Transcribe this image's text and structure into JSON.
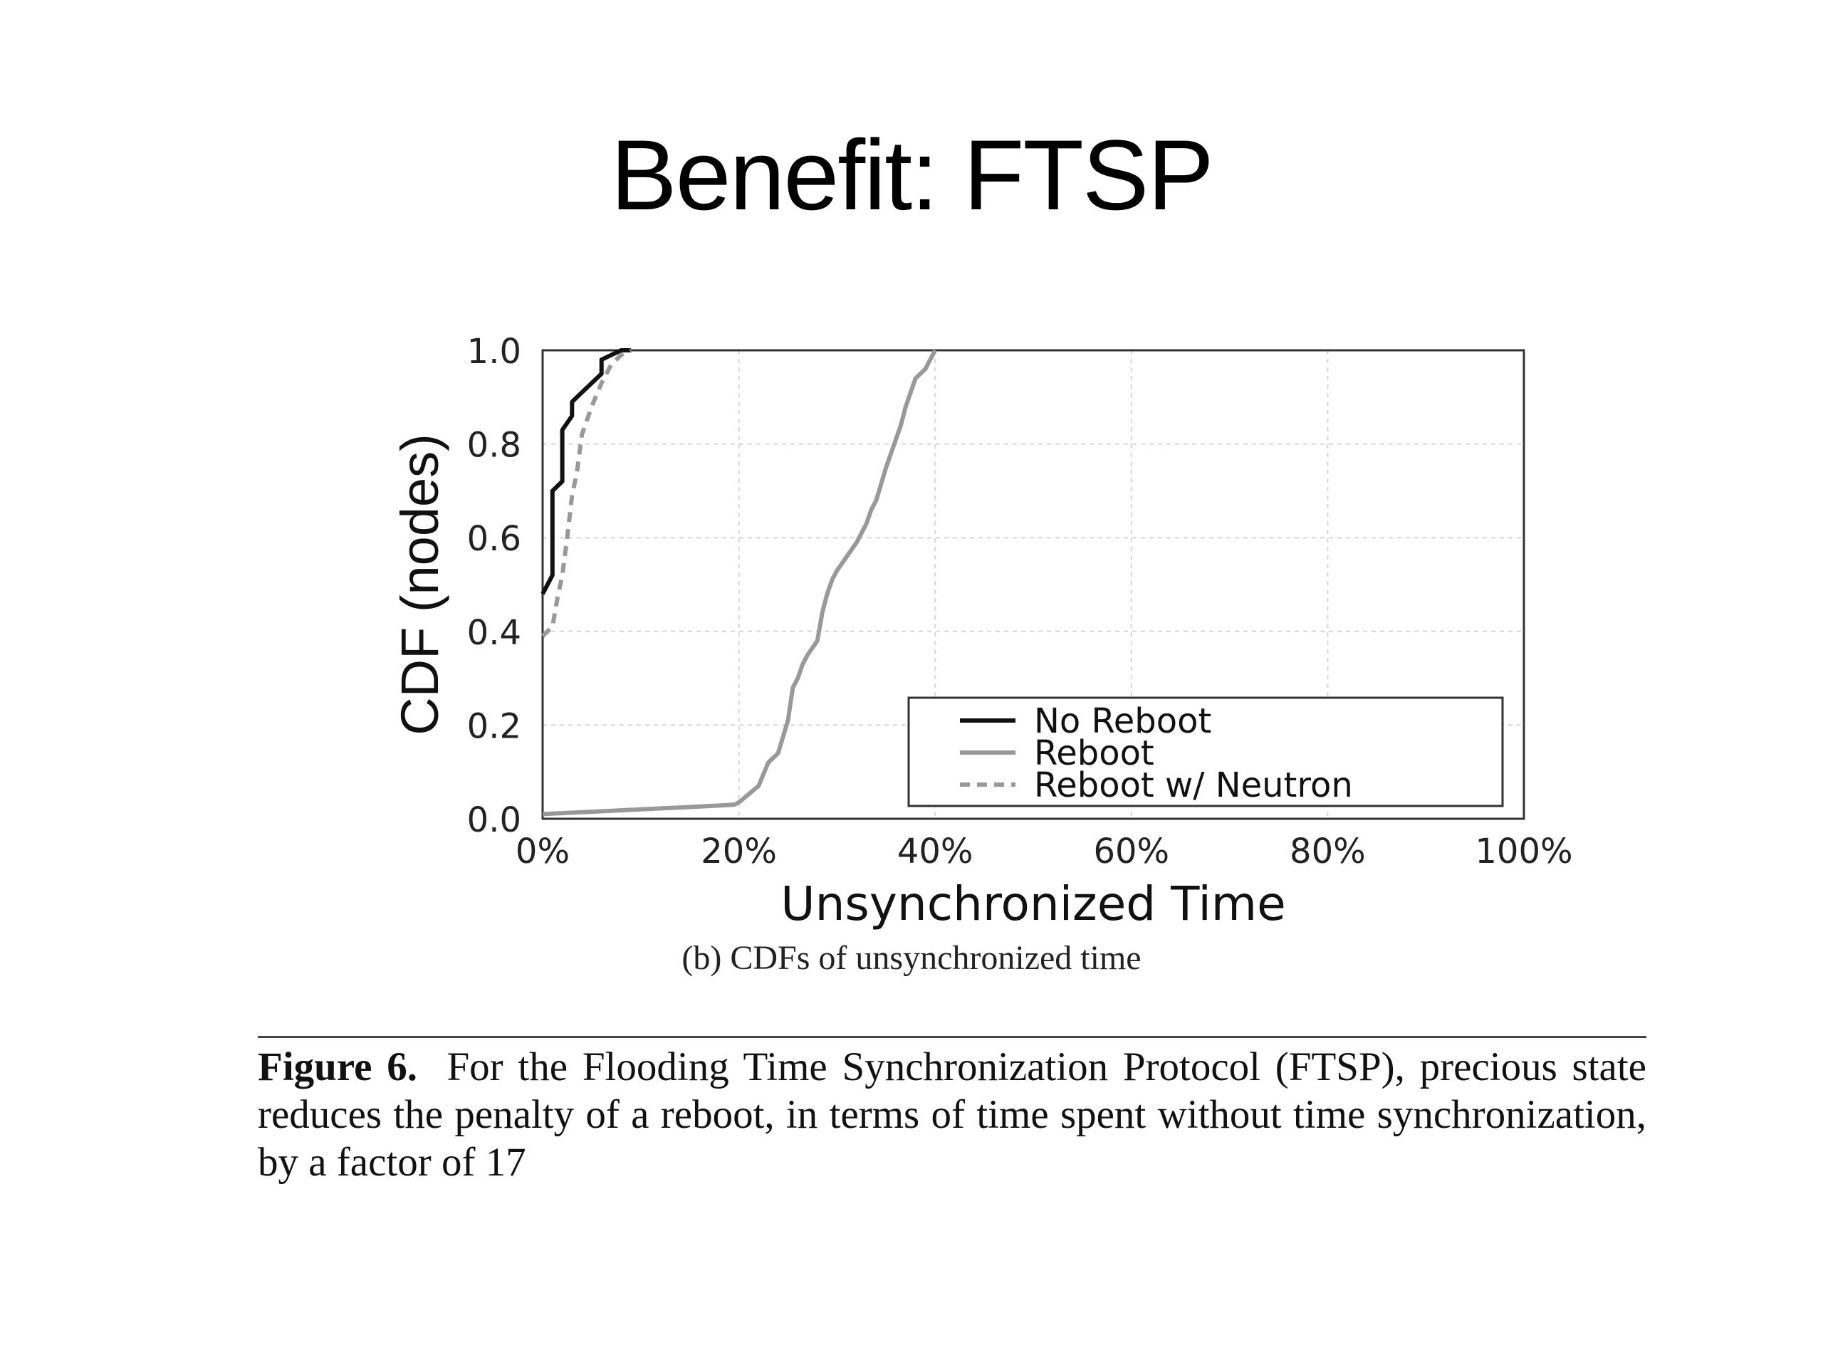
{
  "slide": {
    "title": "Benefit: FTSP"
  },
  "figure": {
    "subcaption": "(b)  CDFs of unsynchronized time",
    "caption_label": "Figure 6.",
    "caption_text": "For the Flooding Time Synchronization Protocol (FTSP), precious state reduces the penalty of a reboot, in terms of time spent without time synchronization, by a factor of 17"
  },
  "chart_data": {
    "type": "line",
    "xlabel": "Unsynchronized Time",
    "ylabel": "CDF (nodes)",
    "xlim": [
      0,
      100
    ],
    "ylim": [
      0,
      1.0
    ],
    "xticks": [
      0,
      20,
      40,
      60,
      80,
      100
    ],
    "xtick_labels": [
      "0%",
      "20%",
      "40%",
      "60%",
      "80%",
      "100%"
    ],
    "yticks": [
      0.0,
      0.2,
      0.4,
      0.6,
      0.8,
      1.0
    ],
    "ytick_labels": [
      "0.0",
      "0.2",
      "0.4",
      "0.6",
      "0.8",
      "1.0"
    ],
    "grid": true,
    "legend_position": "bottom-right",
    "series": [
      {
        "name": "No Reboot",
        "color": "#111111",
        "dash": "solid",
        "x": [
          0,
          1,
          1,
          2,
          2,
          3,
          3,
          4,
          5,
          6,
          6,
          7,
          8,
          9
        ],
        "y": [
          0.48,
          0.52,
          0.7,
          0.72,
          0.83,
          0.86,
          0.89,
          0.91,
          0.93,
          0.95,
          0.98,
          0.99,
          1.0,
          1.0
        ]
      },
      {
        "name": "Reboot",
        "color": "#999999",
        "dash": "solid",
        "x": [
          0,
          5,
          10,
          15,
          19.5,
          20,
          22,
          23,
          24,
          25,
          25.5,
          26,
          26.5,
          27,
          28,
          28.5,
          29,
          29.5,
          30,
          31,
          32,
          33,
          33.5,
          34,
          35,
          35.5,
          36,
          36.5,
          37,
          38,
          39,
          39.5,
          40
        ],
        "y": [
          0.01,
          0.015,
          0.02,
          0.025,
          0.03,
          0.035,
          0.07,
          0.12,
          0.14,
          0.21,
          0.28,
          0.3,
          0.33,
          0.35,
          0.38,
          0.44,
          0.48,
          0.51,
          0.53,
          0.56,
          0.59,
          0.63,
          0.66,
          0.68,
          0.75,
          0.78,
          0.81,
          0.84,
          0.88,
          0.94,
          0.96,
          0.98,
          1.0
        ]
      },
      {
        "name": "Reboot w/ Neutron",
        "color": "#999999",
        "dash": "dashed",
        "x": [
          0,
          1,
          1.5,
          2,
          2.5,
          3,
          3.5,
          4,
          5,
          6,
          7,
          8,
          9
        ],
        "y": [
          0.39,
          0.41,
          0.47,
          0.52,
          0.6,
          0.69,
          0.74,
          0.82,
          0.88,
          0.93,
          0.97,
          0.99,
          1.0
        ]
      }
    ]
  }
}
